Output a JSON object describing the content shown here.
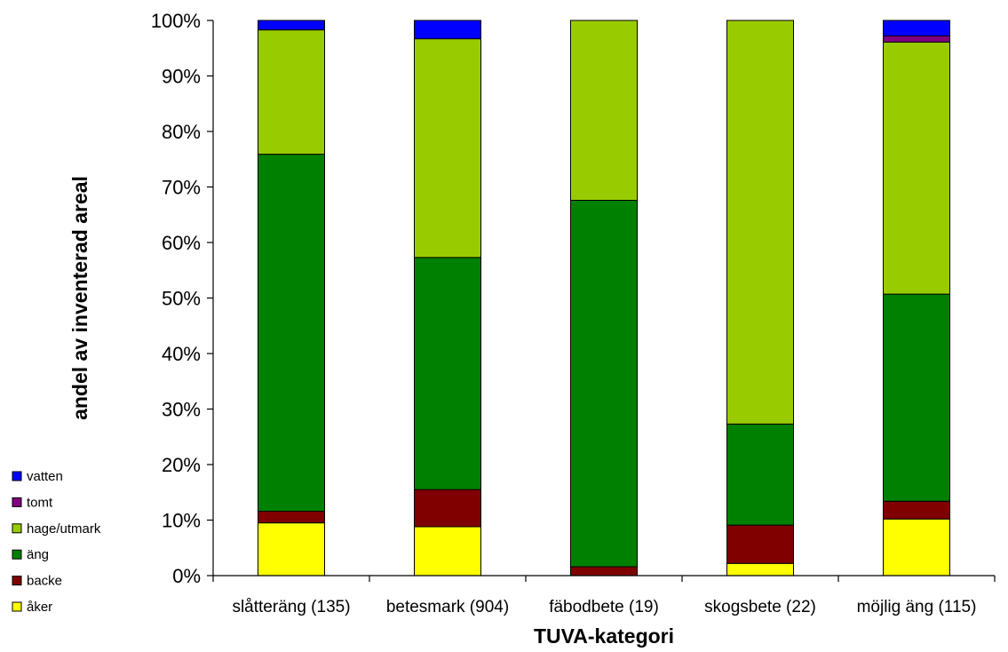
{
  "chart_data": {
    "type": "bar",
    "stacked": true,
    "xlabel": "TUVA-kategori",
    "ylabel": "andel av inventerad areal",
    "ylim": [
      0,
      100
    ],
    "yticks": [
      "0%",
      "10%",
      "20%",
      "30%",
      "40%",
      "50%",
      "60%",
      "70%",
      "80%",
      "90%",
      "100%"
    ],
    "grid": false,
    "legend_position": "bottom-left",
    "categories": [
      "slåtteräng (135)",
      "betesmark (904)",
      "fäbodbete (19)",
      "skogsbete (22)",
      "möjlig äng (115)"
    ],
    "series": [
      {
        "name": "åker",
        "color": "#ffff00",
        "values": [
          9.5,
          8.8,
          0,
          2.2,
          10.2
        ]
      },
      {
        "name": "backe",
        "color": "#800000",
        "values": [
          2.1,
          6.7,
          1.6,
          6.9,
          3.2
        ]
      },
      {
        "name": "äng",
        "color": "#008000",
        "values": [
          64.3,
          41.8,
          66.0,
          18.2,
          37.3
        ]
      },
      {
        "name": "hage/utmark",
        "color": "#99cc00",
        "values": [
          22.4,
          39.4,
          32.4,
          72.7,
          45.4
        ]
      },
      {
        "name": "tomt",
        "color": "#800080",
        "values": [
          0,
          0,
          0,
          0,
          1.1
        ]
      },
      {
        "name": "vatten",
        "color": "#0000ff",
        "values": [
          1.7,
          3.3,
          0,
          0,
          2.8
        ]
      }
    ]
  }
}
